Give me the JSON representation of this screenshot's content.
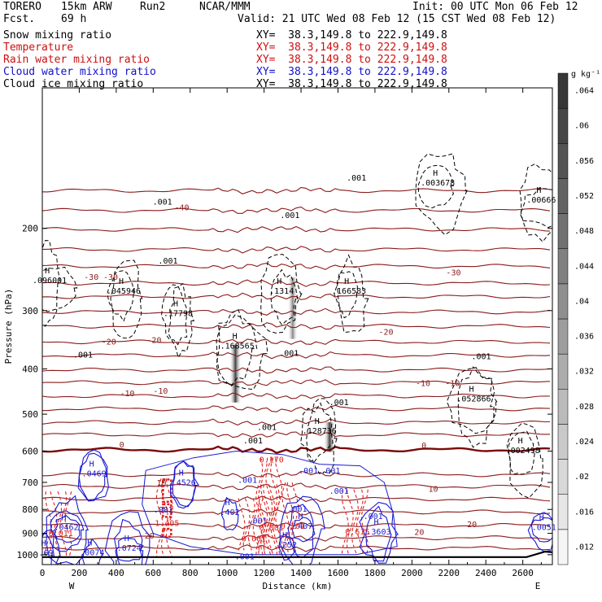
{
  "header": {
    "model": "TORERO",
    "resolution": "15km ARW",
    "run": "Run2",
    "org": "NCAR/MMM",
    "init": "Init: 00 UTC Mon 06 Feb 12",
    "fcst": "Fcst.",
    "fcst_hours": "69 h",
    "valid": "Valid: 21 UTC Wed 08 Feb 12 (15 CST Wed 08 Feb 12)"
  },
  "fields": [
    {
      "name": "Snow mixing ratio",
      "color": "#000000",
      "xy": "XY=  38.3,149.8 to 222.9,149.8"
    },
    {
      "name": "Temperature",
      "color": "#cc1010",
      "xy": "XY=  38.3,149.8 to 222.9,149.8"
    },
    {
      "name": "Rain water mixing ratio",
      "color": "#cc1010",
      "xy": "XY=  38.3,149.8 to 222.9,149.8"
    },
    {
      "name": "Cloud water mixing ratio",
      "color": "#1010cc",
      "xy": "XY=  38.3,149.8 to 222.9,149.8"
    },
    {
      "name": "Cloud ice mixing ratio",
      "color": "#000000",
      "xy": "XY=  38.3,149.8 to 222.9,149.8"
    }
  ],
  "colors": {
    "temperature": "#8b1a1a",
    "freezing": "#7a0a0a",
    "rain": "#e02020",
    "cloud_water": "#1a1ad0",
    "snow": "#000000",
    "terrain": "#000000"
  },
  "chart_data": {
    "type": "contour",
    "xlabel": "Distance (km)",
    "ylabel": "Pressure (hPa)",
    "xlim": [
      0,
      2760
    ],
    "ylim": [
      1050,
      100
    ],
    "x_ticks": [
      0,
      200,
      400,
      600,
      800,
      1000,
      1200,
      1400,
      1600,
      1800,
      2000,
      2200,
      2400,
      2600
    ],
    "y_ticks": [
      200,
      300,
      400,
      500,
      600,
      700,
      800,
      900,
      1000
    ],
    "y_scale": "log",
    "x_end_labels": {
      "left": "W",
      "right": "E"
    },
    "colorbar": {
      "unit": "g kg⁻¹",
      "ticks": [
        ".012",
        ".016",
        ".02",
        ".024",
        ".028",
        ".032",
        ".036",
        ".04",
        ".044",
        ".048",
        ".052",
        ".056",
        ".06",
        ".064"
      ],
      "min": 0.01,
      "max": 0.066
    },
    "isotherms": [
      {
        "label": "-40",
        "pressure_levels": [
          166,
          183,
          201
        ]
      },
      {
        "label": "-30",
        "pressure_levels": [
          222,
          241,
          262,
          280,
          302
        ]
      },
      {
        "label": "-20",
        "pressure_levels": [
          324,
          350,
          374,
          402,
          428
        ]
      },
      {
        "label": "-10",
        "pressure_levels": [
          457,
          487,
          521,
          553
        ]
      },
      {
        "label": "0",
        "pressure": 596
      },
      {
        "label": "10",
        "pressure_levels": [
          674,
          714,
          760,
          810
        ]
      },
      {
        "label": "20",
        "pressure_levels": [
          865,
          920,
          968
        ]
      }
    ],
    "temperature_labels": [
      {
        "text": "-40",
        "x": 755,
        "p": 183
      },
      {
        "text": "-30",
        "x": 265,
        "p": 258
      },
      {
        "text": "-30",
        "x": 370,
        "p": 258
      },
      {
        "text": "-30",
        "x": 2225,
        "p": 252
      },
      {
        "text": "-20",
        "x": 360,
        "p": 355
      },
      {
        "text": "-20",
        "x": 605,
        "p": 352
      },
      {
        "text": "-20",
        "x": 1860,
        "p": 338
      },
      {
        "text": "-10",
        "x": 460,
        "p": 458
      },
      {
        "text": "-10",
        "x": 640,
        "p": 452
      },
      {
        "text": "-10",
        "x": 2060,
        "p": 435
      },
      {
        "text": "-10",
        "x": 2220,
        "p": 435
      },
      {
        "text": "0",
        "x": 430,
        "p": 589
      },
      {
        "text": "0",
        "x": 2065,
        "p": 592
      },
      {
        "text": "10",
        "x": 645,
        "p": 711
      },
      {
        "text": "10",
        "x": 2115,
        "p": 733
      },
      {
        "text": "20",
        "x": 580,
        "p": 923
      },
      {
        "text": "20",
        "x": 2040,
        "p": 907
      },
      {
        "text": "20",
        "x": 2325,
        "p": 873
      }
    ],
    "snow_maxima": [
      {
        "text": ".096001",
        "x": 40,
        "p": 262
      },
      {
        "text": ".045946",
        "x": 440,
        "p": 276
      },
      {
        "text": ".17798",
        "x": 735,
        "p": 308
      },
      {
        "text": ".168565",
        "x": 1055,
        "p": 362
      },
      {
        "text": ".1314",
        "x": 1295,
        "p": 276
      },
      {
        "text": ".166583",
        "x": 1660,
        "p": 276
      },
      {
        "text": ".003678",
        "x": 2140,
        "p": 162
      },
      {
        "text": ".00666",
        "x": 2700,
        "p": 176
      },
      {
        "text": ".052866",
        "x": 2335,
        "p": 470
      },
      {
        "text": ".002498",
        "x": 2600,
        "p": 606
      },
      {
        "text": ".128736",
        "x": 1500,
        "p": 550
      },
      {
        "text": ".001",
        "x": 650,
        "p": 178
      },
      {
        "text": ".001",
        "x": 680,
        "p": 238
      },
      {
        "text": ".001",
        "x": 1340,
        "p": 190
      },
      {
        "text": ".001",
        "x": 1700,
        "p": 158
      },
      {
        "text": ".001",
        "x": 220,
        "p": 378
      },
      {
        "text": ".001",
        "x": 1335,
        "p": 375
      },
      {
        "text": ".001",
        "x": 1605,
        "p": 478
      },
      {
        "text": ".001",
        "x": 1215,
        "p": 540
      },
      {
        "text": ".001",
        "x": 1140,
        "p": 577
      },
      {
        "text": ".001",
        "x": 2375,
        "p": 381
      }
    ],
    "rain_maxima": [
      {
        "text": "0.011",
        "x": 100,
        "p": 912
      },
      {
        "text": "1.405",
        "x": 675,
        "p": 867
      },
      {
        "text": "0.170",
        "x": 1240,
        "p": 635
      },
      {
        "text": "0.101",
        "x": 1355,
        "p": 880
      },
      {
        "text": "0.615",
        "x": 1705,
        "p": 905
      },
      {
        "text": "0.001",
        "x": 1240,
        "p": 887
      },
      {
        "text": "0.001",
        "x": 1145,
        "p": 937
      }
    ],
    "cloud_water_maxima": [
      {
        "text": ".0469",
        "x": 280,
        "p": 680
      },
      {
        "text": ".4526",
        "x": 765,
        "p": 710
      },
      {
        "text": ".402",
        "x": 1015,
        "p": 822
      },
      {
        "text": ".0462",
        "x": 130,
        "p": 885
      },
      {
        "text": ".0074",
        "x": 270,
        "p": 1003
      },
      {
        "text": ".0724",
        "x": 470,
        "p": 980
      },
      {
        "text": ".252",
        "x": 1325,
        "p": 966
      },
      {
        "text": ".3603",
        "x": 1820,
        "p": 905
      },
      {
        "text": ".0051",
        "x": 2715,
        "p": 886
      },
      {
        "text": ".69",
        "x": 20,
        "p": 1005
      },
      {
        "text": ".001",
        "x": 1110,
        "p": 702
      },
      {
        "text": ".001",
        "x": 1440,
        "p": 670
      },
      {
        "text": ".001",
        "x": 1560,
        "p": 670
      },
      {
        "text": ".001",
        "x": 1380,
        "p": 809
      },
      {
        "text": ".001",
        "x": 1605,
        "p": 740
      },
      {
        "text": ".001",
        "x": 1165,
        "p": 858
      },
      {
        "text": ".001",
        "x": 1790,
        "p": 838
      },
      {
        "text": ".001",
        "x": 1095,
        "p": 1022
      },
      {
        "text": ".001",
        "x": 655,
        "p": 812
      },
      {
        "text": ".407",
        "x": 1410,
        "p": 880
      }
    ],
    "ice_cores": [
      {
        "x": 1045,
        "p_top": 355,
        "p_bottom": 472,
        "max": 0.064
      },
      {
        "x": 1555,
        "p_top": 520,
        "p_bottom": 602,
        "max": 0.064
      },
      {
        "x": 1355,
        "p_top": 255,
        "p_bottom": 345,
        "max": 0.04
      }
    ],
    "terrain": {
      "p_surface": 1012,
      "peak_x": 2720,
      "peak_p": 985
    }
  }
}
